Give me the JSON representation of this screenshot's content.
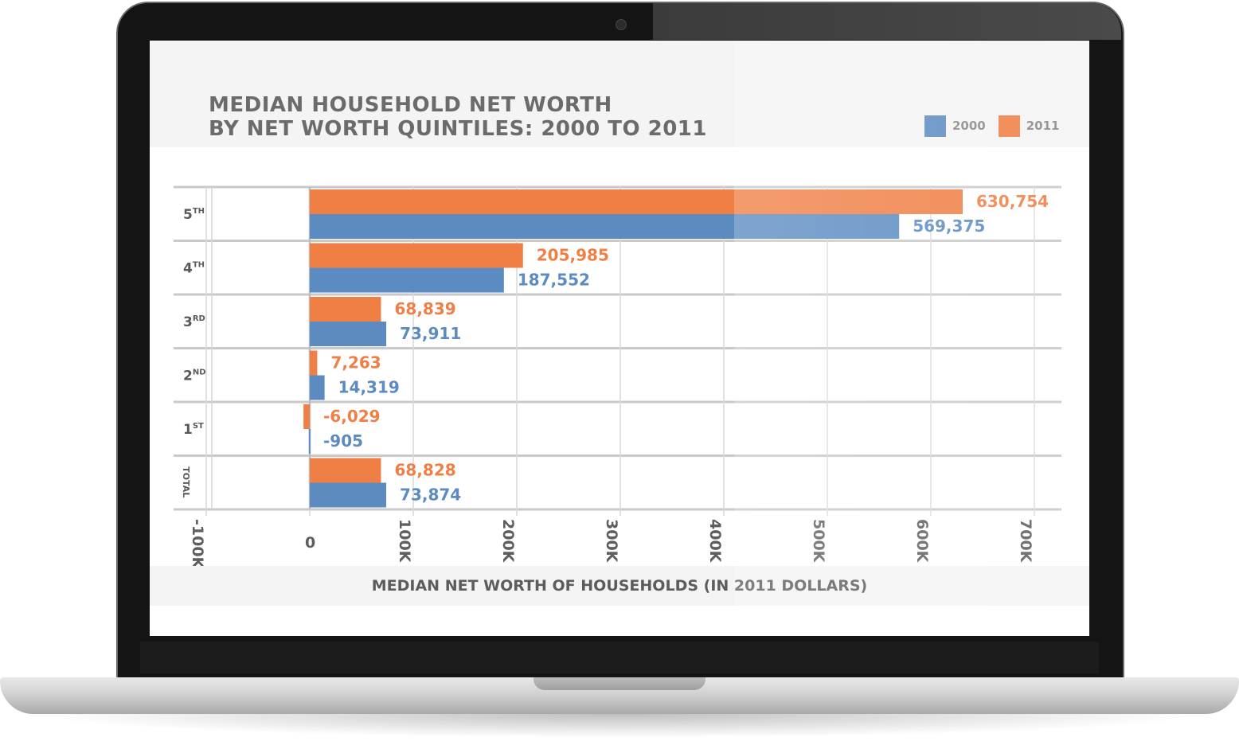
{
  "chart_data": {
    "type": "bar",
    "orientation": "horizontal",
    "title": "MEDIAN HOUSEHOLD NET WORTH\nBY NET WORTH QUINTILES: 2000 TO 2011",
    "xlabel": "MEDIAN NET WORTH OF HOUSEHOLDS (IN 2011 DOLLARS)",
    "ylabel": "",
    "xlim": [
      -100000,
      700000
    ],
    "x_ticks": [
      "-100K",
      "0",
      "100K",
      "200K",
      "300K",
      "400K",
      "500K",
      "600K",
      "700K"
    ],
    "categories": [
      {
        "base": "5",
        "sup": "TH"
      },
      {
        "base": "4",
        "sup": "TH"
      },
      {
        "base": "3",
        "sup": "RD"
      },
      {
        "base": "2",
        "sup": "ND"
      },
      {
        "base": "1",
        "sup": "ST"
      },
      {
        "base": "TOTAL",
        "sup": ""
      }
    ],
    "series": [
      {
        "name": "2011",
        "color": "#f07f45",
        "values": [
          630754,
          205985,
          68839,
          7263,
          -6029,
          68828
        ],
        "labels": [
          "630,754",
          "205,985",
          "68,839",
          "7,263",
          "-6,029",
          "68,828"
        ]
      },
      {
        "name": "2000",
        "color": "#5b8bc1",
        "values": [
          569375,
          187552,
          73911,
          14319,
          -905,
          73874
        ],
        "labels": [
          "569,375",
          "187,552",
          "73,911",
          "14,319",
          "-905",
          "73,874"
        ]
      }
    ],
    "legend": {
      "position": "top-right",
      "order": [
        "2000",
        "2011"
      ]
    },
    "grid": true
  }
}
